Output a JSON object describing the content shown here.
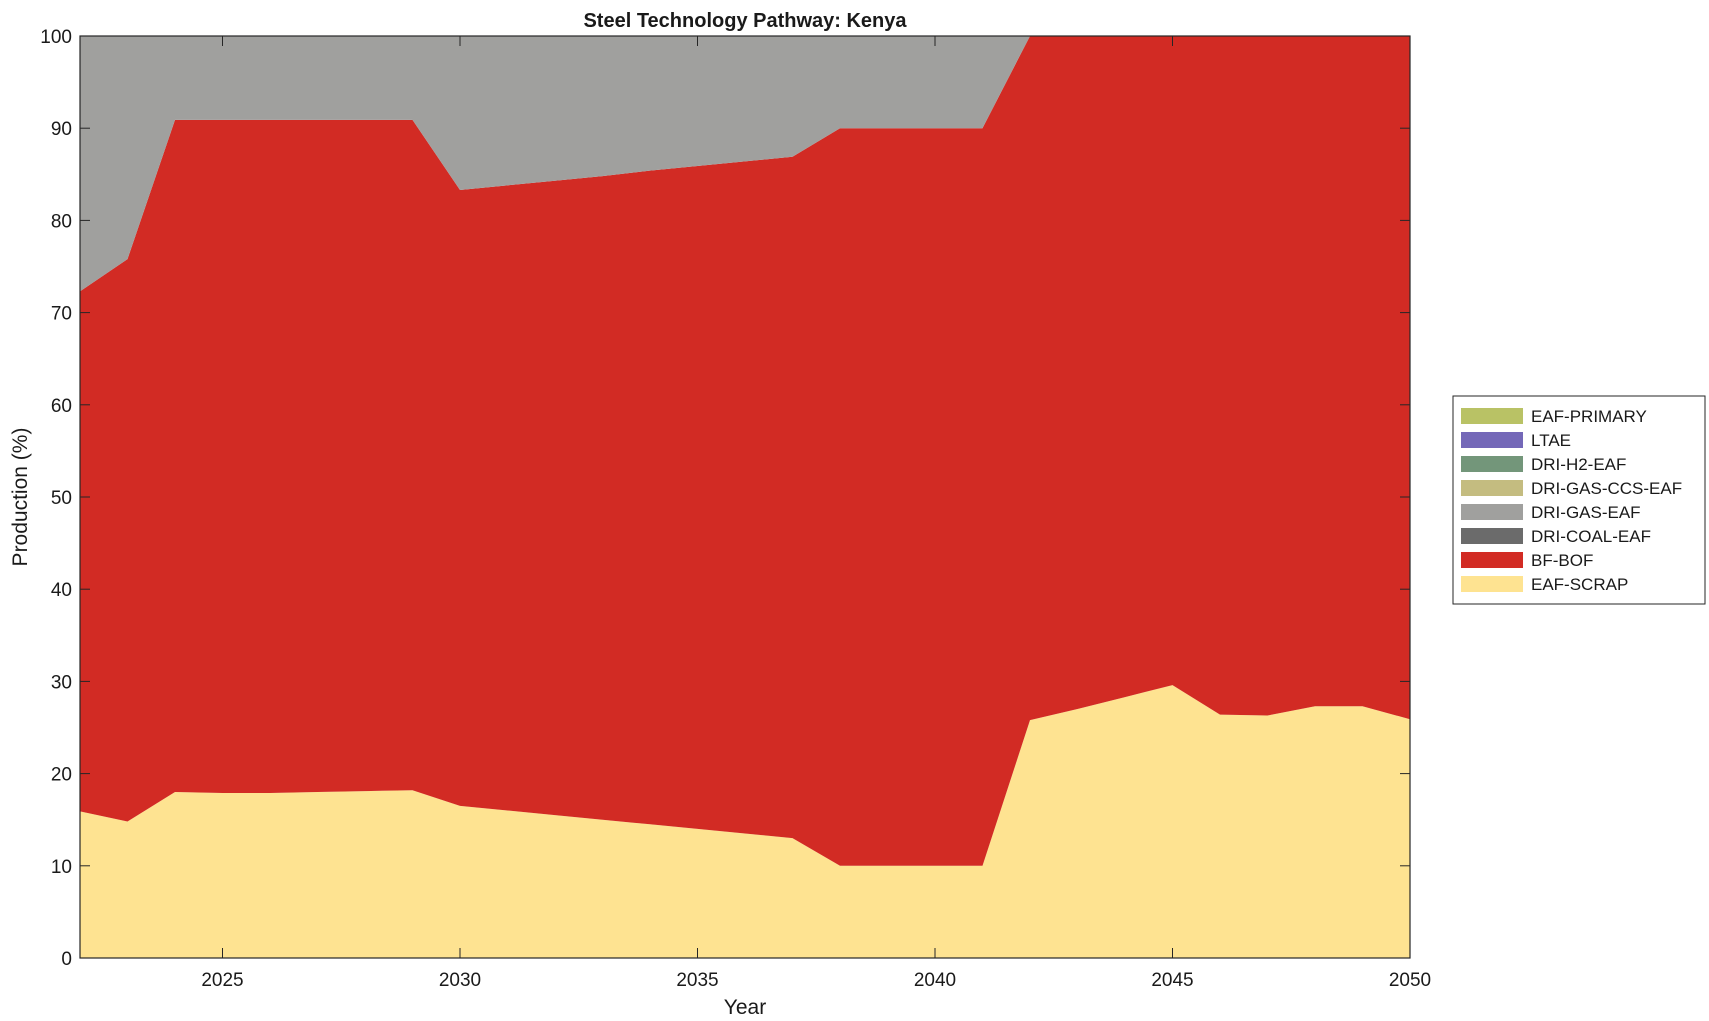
{
  "chart_data": {
    "type": "area",
    "stacked": true,
    "title": "Steel Technology Pathway: Kenya",
    "xlabel": "Year",
    "ylabel": "Production (%)",
    "xlim": [
      2022,
      2050
    ],
    "ylim": [
      0,
      100
    ],
    "xticks": [
      2025,
      2030,
      2035,
      2040,
      2045,
      2050
    ],
    "yticks": [
      0,
      10,
      20,
      30,
      40,
      50,
      60,
      70,
      80,
      90,
      100
    ],
    "grid": false,
    "legend_position": "right",
    "x": [
      2022,
      2023,
      2024,
      2025,
      2026,
      2027,
      2028,
      2029,
      2030,
      2031,
      2032,
      2033,
      2034,
      2035,
      2036,
      2037,
      2038,
      2039,
      2040,
      2041,
      2042,
      2043,
      2044,
      2045,
      2046,
      2047,
      2048,
      2049,
      2050
    ],
    "series": [
      {
        "name": "EAF-SCRAP",
        "color": "#fee391",
        "values": [
          15.9,
          14.8,
          18.0,
          17.9,
          17.9,
          18.0,
          18.1,
          18.2,
          16.5,
          16.0,
          15.5,
          15.0,
          14.5,
          14.0,
          13.5,
          13.0,
          10.0,
          10.0,
          10.0,
          10.0,
          25.8,
          27.0,
          28.3,
          29.6,
          26.4,
          26.3,
          27.3,
          27.3,
          25.9
        ]
      },
      {
        "name": "BF-BOF",
        "color": "#d22b24",
        "values": [
          56.4,
          61.0,
          72.9,
          73.0,
          73.0,
          72.9,
          72.8,
          72.7,
          66.8,
          67.8,
          68.8,
          69.8,
          70.9,
          71.9,
          72.9,
          73.9,
          80.0,
          80.0,
          80.0,
          80.0,
          74.2,
          73.0,
          71.7,
          70.4,
          73.6,
          73.7,
          72.7,
          72.7,
          74.1
        ]
      },
      {
        "name": "DRI-COAL-EAF",
        "color": "#6b6b6b",
        "values": [
          0,
          0,
          0,
          0,
          0,
          0,
          0,
          0,
          0,
          0,
          0,
          0,
          0,
          0,
          0,
          0,
          0,
          0,
          0,
          0,
          0,
          0,
          0,
          0,
          0,
          0,
          0,
          0,
          0
        ]
      },
      {
        "name": "DRI-GAS-EAF",
        "color": "#a0a09e",
        "values": [
          27.7,
          24.2,
          9.1,
          9.1,
          9.1,
          9.1,
          9.1,
          9.1,
          16.7,
          16.2,
          15.7,
          15.2,
          14.6,
          14.1,
          13.6,
          13.1,
          10.0,
          10.0,
          10.0,
          10.0,
          0,
          0,
          0,
          0,
          0,
          0,
          0,
          0,
          0
        ]
      },
      {
        "name": "DRI-GAS-CCS-EAF",
        "color": "#c4bc80",
        "values": [
          0,
          0,
          0,
          0,
          0,
          0,
          0,
          0,
          0,
          0,
          0,
          0,
          0,
          0,
          0,
          0,
          0,
          0,
          0,
          0,
          0,
          0,
          0,
          0,
          0,
          0,
          0,
          0,
          0
        ]
      },
      {
        "name": "DRI-H2-EAF",
        "color": "#73967a",
        "values": [
          0,
          0,
          0,
          0,
          0,
          0,
          0,
          0,
          0,
          0,
          0,
          0,
          0,
          0,
          0,
          0,
          0,
          0,
          0,
          0,
          0,
          0,
          0,
          0,
          0,
          0,
          0,
          0,
          0
        ]
      },
      {
        "name": "LTAE",
        "color": "#7468b8",
        "values": [
          0,
          0,
          0,
          0,
          0,
          0,
          0,
          0,
          0,
          0,
          0,
          0,
          0,
          0,
          0,
          0,
          0,
          0,
          0,
          0,
          0,
          0,
          0,
          0,
          0,
          0,
          0,
          0,
          0
        ]
      },
      {
        "name": "EAF-PRIMARY",
        "color": "#b9c265",
        "values": [
          0,
          0,
          0,
          0,
          0,
          0,
          0,
          0,
          0,
          0,
          0,
          0,
          0,
          0,
          0,
          0,
          0,
          0,
          0,
          0,
          0,
          0,
          0,
          0,
          0,
          0,
          0,
          0,
          0
        ]
      }
    ],
    "legend_order": [
      "EAF-PRIMARY",
      "LTAE",
      "DRI-H2-EAF",
      "DRI-GAS-CCS-EAF",
      "DRI-GAS-EAF",
      "DRI-COAL-EAF",
      "BF-BOF",
      "EAF-SCRAP"
    ]
  }
}
